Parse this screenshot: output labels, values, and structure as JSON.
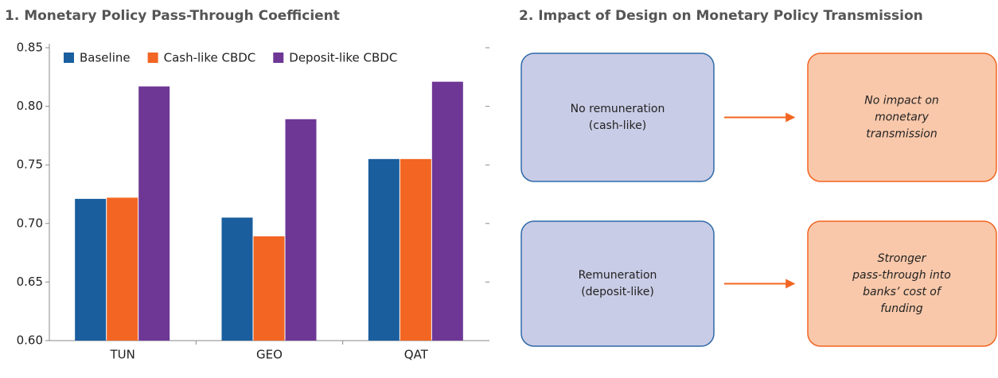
{
  "chart_data": {
    "type": "bar",
    "title": "1. Monetary Policy Pass-Through Coefficient",
    "categories": [
      "TUN",
      "GEO",
      "QAT"
    ],
    "series": [
      {
        "name": "Baseline",
        "color": "#1a5e9e",
        "values": [
          0.721,
          0.705,
          0.755
        ]
      },
      {
        "name": "Cash-like CBDC",
        "color": "#f26522",
        "values": [
          0.722,
          0.689,
          0.755
        ]
      },
      {
        "name": "Deposit-like CBDC",
        "color": "#6e3796",
        "values": [
          0.817,
          0.789,
          0.821
        ]
      }
    ],
    "ylim": [
      0.6,
      0.85
    ],
    "yticks": [
      {
        "value": 0.6,
        "label": "0.60"
      },
      0.65,
      {
        "value": 0.7,
        "label": "0.70"
      },
      0.75,
      {
        "value": 0.8,
        "label": "0.80"
      },
      0.85
    ],
    "legend": "top"
  },
  "diagram": {
    "title": "2. Impact of Design on Monetary Policy Transmission",
    "rows": [
      {
        "left": [
          "No remuneration",
          "(cash-like)"
        ],
        "right": [
          "No impact on",
          "monetary",
          "transmission"
        ]
      },
      {
        "left": [
          "Remuneration",
          "(deposit-like)"
        ],
        "right": [
          "Stronger",
          "pass-through into",
          "banks’ cost of",
          "funding"
        ]
      }
    ]
  }
}
